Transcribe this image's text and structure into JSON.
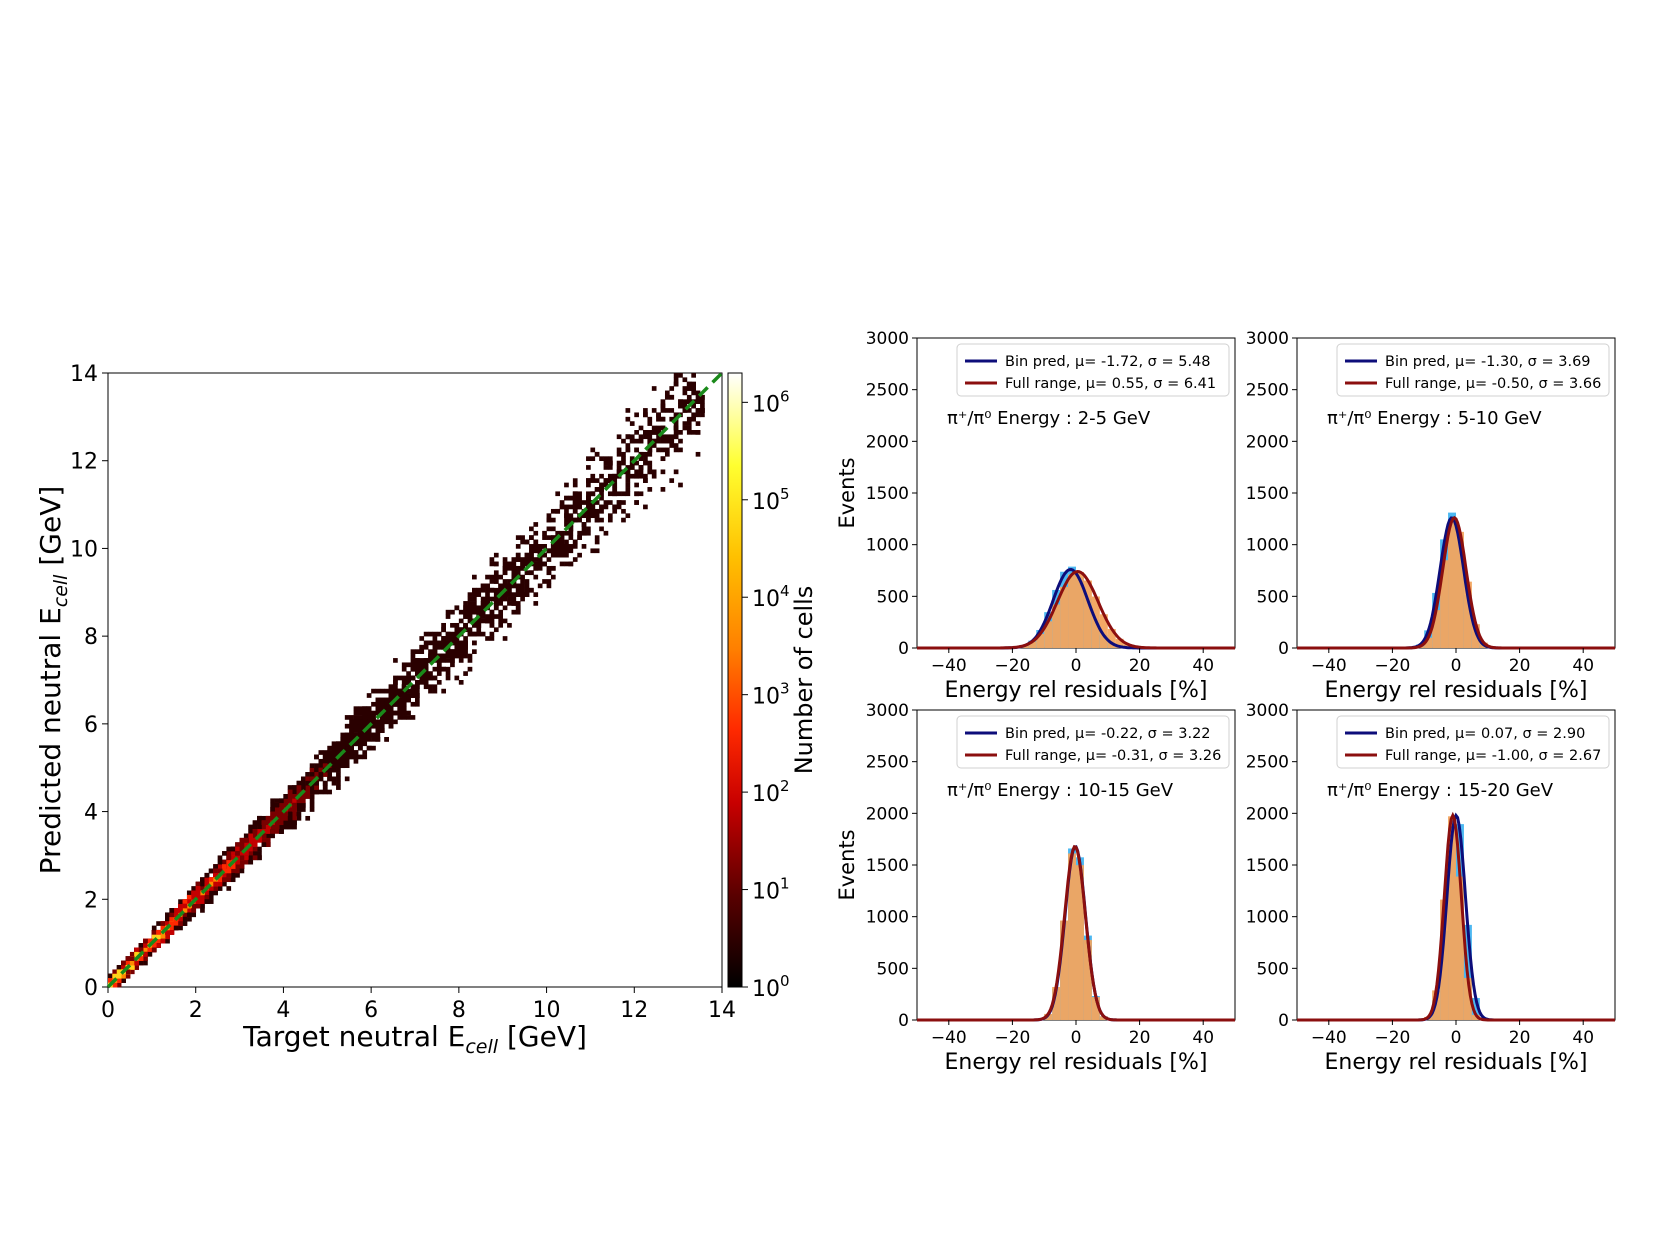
{
  "chart_data": [
    {
      "type": "heatmap",
      "xlabel": "Target neutral E",
      "xlabel_sub": "cell",
      "xlabel_unit": "[GeV]",
      "ylabel": "Predicted neutral E",
      "ylabel_sub": "cell",
      "ylabel_unit": "[GeV]",
      "xlim": [
        0,
        14
      ],
      "ylim": [
        0,
        14
      ],
      "xticks": [
        "0",
        "2",
        "4",
        "6",
        "8",
        "10",
        "12",
        "14"
      ],
      "yticks": [
        "0",
        "2",
        "4",
        "6",
        "8",
        "10",
        "12",
        "14"
      ],
      "diagonal": {
        "from": [
          0,
          0
        ],
        "to": [
          14,
          14
        ],
        "style": "dashed",
        "color": "#1a8a1a"
      },
      "colorbar": {
        "label": "Number of cells",
        "scale": "log",
        "range": [
          1,
          2000000
        ],
        "ticks": [
          {
            "base": "10",
            "exp": "0",
            "value": 1
          },
          {
            "base": "10",
            "exp": "1",
            "value": 10
          },
          {
            "base": "10",
            "exp": "2",
            "value": 100
          },
          {
            "base": "10",
            "exp": "3",
            "value": 1000
          },
          {
            "base": "10",
            "exp": "4",
            "value": 10000
          },
          {
            "base": "10",
            "exp": "5",
            "value": 100000
          },
          {
            "base": "10",
            "exp": "6",
            "value": 1000000
          }
        ]
      }
    },
    {
      "type": "histogram",
      "panel": "2-5 GeV",
      "annotation": "π⁺/π⁰ Energy : 2-5 GeV",
      "xlabel": "Energy rel residuals [%]",
      "ylabel": "Events",
      "xlim": [
        -50,
        50
      ],
      "ylim": [
        0,
        3000
      ],
      "xticks": [
        "−40",
        "−20",
        "0",
        "20",
        "40"
      ],
      "yticks": [
        "0",
        "500",
        "1000",
        "1500",
        "2000",
        "2500",
        "3000"
      ],
      "series": [
        {
          "name": "Bin pred, μ= -1.72, σ = 5.48",
          "mu": -1.72,
          "sigma": 5.48,
          "peak": 760,
          "color": "#0d0d7a"
        },
        {
          "name": "Full range, μ= 0.55, σ = 6.41",
          "mu": 0.55,
          "sigma": 6.41,
          "peak": 740,
          "color": "#8b0f0f"
        }
      ]
    },
    {
      "type": "histogram",
      "panel": "5-10 GeV",
      "annotation": "π⁺/π⁰ Energy : 5-10 GeV",
      "xlabel": "Energy rel residuals [%]",
      "ylabel": "",
      "xlim": [
        -50,
        50
      ],
      "ylim": [
        0,
        3000
      ],
      "xticks": [
        "−40",
        "−20",
        "0",
        "20",
        "40"
      ],
      "yticks": [
        "0",
        "500",
        "1000",
        "1500",
        "2000",
        "2500",
        "3000"
      ],
      "series": [
        {
          "name": "Bin pred, μ= -1.30, σ = 3.69",
          "mu": -1.3,
          "sigma": 3.69,
          "peak": 1260,
          "color": "#0d0d7a"
        },
        {
          "name": "Full range, μ= -0.50, σ = 3.66",
          "mu": -0.5,
          "sigma": 3.66,
          "peak": 1260,
          "color": "#8b0f0f"
        }
      ]
    },
    {
      "type": "histogram",
      "panel": "10-15 GeV",
      "annotation": "π⁺/π⁰ Energy : 10-15 GeV",
      "xlabel": "Energy rel residuals [%]",
      "ylabel": "Events",
      "xlim": [
        -50,
        50
      ],
      "ylim": [
        0,
        3000
      ],
      "xticks": [
        "−40",
        "−20",
        "0",
        "20",
        "40"
      ],
      "yticks": [
        "0",
        "500",
        "1000",
        "1500",
        "2000",
        "2500",
        "3000"
      ],
      "series": [
        {
          "name": "Bin pred, μ= -0.22, σ = 3.22",
          "mu": -0.22,
          "sigma": 3.22,
          "peak": 1680,
          "color": "#0d0d7a"
        },
        {
          "name": "Full range, μ= -0.31, σ = 3.26",
          "mu": -0.31,
          "sigma": 3.26,
          "peak": 1680,
          "color": "#8b0f0f"
        }
      ]
    },
    {
      "type": "histogram",
      "panel": "15-20 GeV",
      "annotation": "π⁺/π⁰ Energy : 15-20 GeV",
      "xlabel": "Energy rel residuals [%]",
      "ylabel": "",
      "xlim": [
        -50,
        50
      ],
      "ylim": [
        0,
        3000
      ],
      "xticks": [
        "−40",
        "−20",
        "0",
        "20",
        "40"
      ],
      "yticks": [
        "0",
        "500",
        "1000",
        "1500",
        "2000",
        "2500",
        "3000"
      ],
      "series": [
        {
          "name": "Bin pred, μ= 0.07, σ = 2.90",
          "mu": 0.07,
          "sigma": 2.9,
          "peak": 1980,
          "color": "#0d0d7a"
        },
        {
          "name": "Full range, μ= -1.00, σ = 2.67",
          "mu": -1.0,
          "sigma": 2.67,
          "peak": 1980,
          "color": "#8b0f0f"
        }
      ]
    }
  ]
}
